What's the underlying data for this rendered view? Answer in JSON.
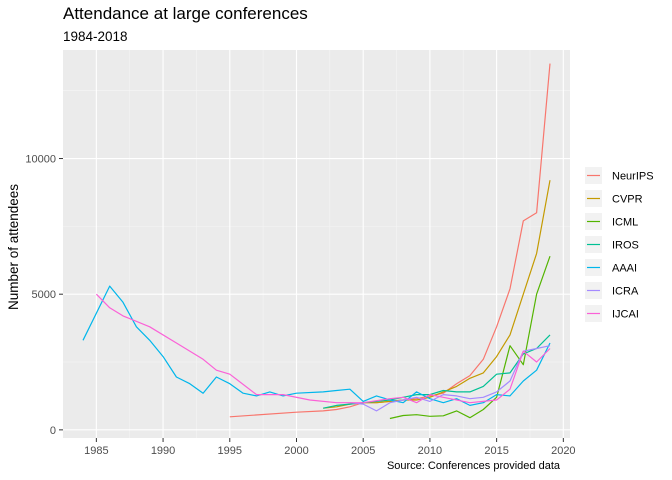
{
  "chart_data": {
    "type": "line",
    "title": "Attendance at large conferences",
    "subtitle": "1984-2018",
    "caption": "Source: Conferences provided data",
    "xlabel": "",
    "ylabel": "Number of attendees",
    "xlim": [
      1982.5,
      2020.5
    ],
    "ylim": [
      -300,
      14000
    ],
    "x_ticks": [
      1985,
      1990,
      1995,
      2000,
      2005,
      2010,
      2015,
      2020
    ],
    "y_ticks": [
      0,
      5000,
      10000
    ],
    "y_tick_labels": [
      "0",
      "5000",
      "10000"
    ],
    "grid": true,
    "legend_position": "right",
    "colors": {
      "panel": "#ebebeb",
      "grid_major": "#ffffff",
      "grid_minor": "#f5f5f5"
    },
    "series": [
      {
        "name": "NeurIPS",
        "color": "#F8766D",
        "x": [
          1995,
          2000,
          2002,
          2003,
          2004,
          2005,
          2006,
          2007,
          2008,
          2009,
          2010,
          2011,
          2012,
          2013,
          2014,
          2015,
          2016,
          2017,
          2018,
          2019
        ],
        "y": [
          480,
          650,
          700,
          750,
          850,
          1000,
          1000,
          1050,
          1100,
          1150,
          1250,
          1350,
          1700,
          2000,
          2600,
          3800,
          5200,
          7700,
          8000,
          13500
        ]
      },
      {
        "name": "CVPR",
        "color": "#C49A00",
        "x": [
          2002,
          2003,
          2004,
          2005,
          2006,
          2007,
          2008,
          2009,
          2010,
          2011,
          2012,
          2013,
          2014,
          2015,
          2016,
          2017,
          2018,
          2019
        ],
        "y": [
          800,
          850,
          950,
          1000,
          1000,
          1050,
          1100,
          1100,
          1200,
          1400,
          1600,
          1900,
          2100,
          2700,
          3500,
          5000,
          6500,
          9200
        ]
      },
      {
        "name": "ICML",
        "color": "#53B400",
        "x": [
          2007,
          2008,
          2009,
          2010,
          2011,
          2012,
          2013,
          2014,
          2015,
          2016,
          2017,
          2018,
          2019
        ],
        "y": [
          420,
          530,
          560,
          500,
          520,
          700,
          450,
          750,
          1200,
          3100,
          2400,
          5000,
          6400
        ]
      },
      {
        "name": "IROS",
        "color": "#00C094",
        "x": [
          2002,
          2003,
          2004,
          2005,
          2006,
          2007,
          2008,
          2009,
          2010,
          2011,
          2012,
          2013,
          2014,
          2015,
          2016,
          2017,
          2018,
          2019
        ],
        "y": [
          800,
          900,
          950,
          1000,
          1050,
          1100,
          1200,
          1300,
          1300,
          1450,
          1400,
          1400,
          1600,
          2050,
          2100,
          2800,
          3000,
          3500
        ]
      },
      {
        "name": "AAAI",
        "color": "#00B6EB",
        "x": [
          1984,
          1986,
          1987,
          1988,
          1989,
          1990,
          1991,
          1992,
          1993,
          1994,
          1995,
          1996,
          1997,
          1998,
          1999,
          2000,
          2002,
          2003,
          2004,
          2005,
          2006,
          2007,
          2008,
          2009,
          2010,
          2011,
          2012,
          2013,
          2014,
          2015,
          2016,
          2017,
          2018,
          2019
        ],
        "y": [
          3300,
          5300,
          4700,
          3800,
          3300,
          2700,
          1950,
          1700,
          1350,
          1950,
          1700,
          1350,
          1250,
          1400,
          1250,
          1350,
          1400,
          1450,
          1500,
          1050,
          1250,
          1100,
          1000,
          1400,
          1150,
          1000,
          1150,
          900,
          1000,
          1300,
          1250,
          1800,
          2200,
          3200
        ]
      },
      {
        "name": "ICRA",
        "color": "#A58AFF",
        "x": [
          2004,
          2005,
          2006,
          2007,
          2008,
          2009,
          2010,
          2011,
          2012,
          2013,
          2014,
          2015,
          2016,
          2017,
          2018,
          2019
        ],
        "y": [
          1000,
          950,
          700,
          1000,
          1100,
          1200,
          1050,
          1300,
          1250,
          1150,
          1200,
          1400,
          1800,
          2900,
          3000,
          3100
        ]
      },
      {
        "name": "IJCAI",
        "color": "#FB61D7",
        "x": [
          1985,
          1986,
          1987,
          1989,
          1991,
          1993,
          1994,
          1995,
          1997,
          1999,
          2001,
          2003,
          2005,
          2007,
          2008,
          2009,
          2010,
          2011,
          2013,
          2015,
          2016,
          2017,
          2018,
          2019
        ],
        "y": [
          5000,
          4500,
          4200,
          3800,
          3200,
          2600,
          2200,
          2050,
          1300,
          1300,
          1100,
          1000,
          1000,
          1150,
          1200,
          1000,
          1300,
          1200,
          1000,
          1100,
          1500,
          2900,
          2500,
          3000
        ]
      }
    ]
  }
}
